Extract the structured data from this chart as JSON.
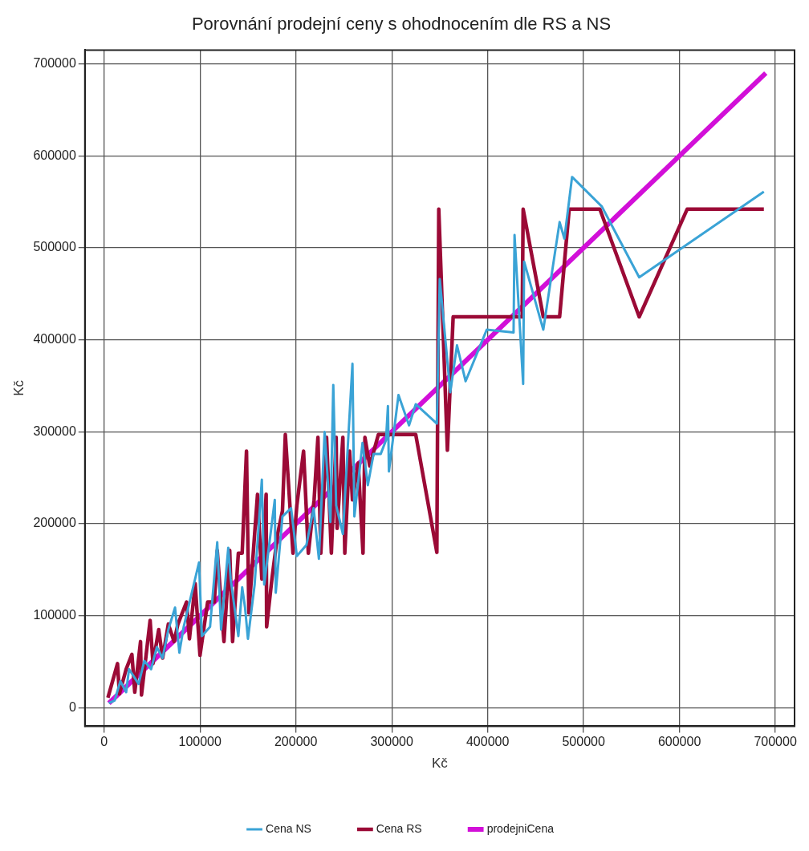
{
  "chart_data": {
    "type": "line",
    "title": "Porovnání prodejní ceny s ohodnocením dle RS a NS",
    "xlabel": "Kč",
    "ylabel": "Kč",
    "xlim": [
      -20000,
      720000
    ],
    "ylim": [
      -20000,
      715000
    ],
    "xticks": [
      0,
      100000,
      200000,
      300000,
      400000,
      500000,
      600000,
      700000
    ],
    "yticks": [
      0,
      100000,
      200000,
      300000,
      400000,
      500000,
      600000,
      700000
    ],
    "grid": true,
    "legend": "bottom",
    "marker": "none",
    "line_style": "solid",
    "series": [
      {
        "name": "Cena NS",
        "color": "#3aa3d6",
        "x": [
          5000,
          11000,
          17000,
          23000,
          26000,
          36000,
          42000,
          49000,
          55000,
          61000,
          67000,
          74000,
          78500,
          83000,
          99000,
          102000,
          110500,
          118000,
          122000,
          129500,
          132000,
          140000,
          144000,
          147000,
          150000,
          157000,
          164500,
          167000,
          178000,
          179000,
          186000,
          195000,
          201000,
          211000,
          218500,
          224000,
          230000,
          236000,
          239000,
          242000,
          249000,
          259000,
          261000,
          269500,
          275000,
          281000,
          288500,
          294000,
          296000,
          297000,
          307000,
          318000,
          325000,
          347000,
          350000,
          361000,
          368000,
          377000,
          399000,
          427000,
          428000,
          437000,
          438000,
          458000,
          475000,
          480000,
          488000,
          519000,
          558000,
          688000
        ],
        "values": [
          5000,
          8000,
          29000,
          17000,
          42000,
          26000,
          51000,
          42000,
          66000,
          54000,
          85000,
          109000,
          60000,
          88000,
          158000,
          78000,
          88000,
          180000,
          85000,
          174000,
          140000,
          78000,
          131000,
          109000,
          75000,
          134000,
          248000,
          134000,
          226000,
          125000,
          208000,
          217000,
          165000,
          177000,
          217000,
          162000,
          300000,
          202000,
          351000,
          220000,
          189000,
          374000,
          208000,
          288000,
          242000,
          276000,
          276000,
          291000,
          328000,
          257000,
          340000,
          307000,
          330000,
          309000,
          466000,
          343000,
          394000,
          355000,
          411000,
          408000,
          514000,
          352000,
          485000,
          411000,
          528000,
          510000,
          577000,
          545000,
          468000,
          561000
        ]
      },
      {
        "name": "Cena RS",
        "color": "#9b0a36",
        "x": [
          4000,
          14000,
          16000,
          23000,
          29000,
          32000,
          38000,
          39000,
          48000,
          51000,
          57000,
          61000,
          67000,
          73000,
          77000,
          86000,
          89000,
          95000,
          100000,
          108000,
          115000,
          118000,
          125000,
          131000,
          134000,
          140000,
          144000,
          148500,
          151000,
          157000,
          160000,
          164500,
          169000,
          169500,
          175000,
          181000,
          186000,
          189000,
          197000,
          201000,
          208000,
          213000,
          219000,
          223000,
          226000,
          232000,
          237000,
          242000,
          243000,
          249000,
          251000,
          256000,
          259000,
          265000,
          270000,
          272000,
          277000,
          286000,
          325000,
          347000,
          349000,
          358000,
          364000,
          436000,
          437000,
          458000,
          475000,
          485000,
          517000,
          558000,
          608000,
          688000
        ],
        "values": [
          11000,
          48000,
          15000,
          42000,
          58000,
          17000,
          72000,
          14000,
          95000,
          48000,
          85000,
          54000,
          91000,
          72000,
          91000,
          115000,
          75000,
          135000,
          57000,
          115000,
          115000,
          171000,
          72000,
          171000,
          72000,
          168000,
          168000,
          279000,
          103000,
          189000,
          232000,
          140000,
          232000,
          88000,
          140000,
          189000,
          214000,
          297000,
          168000,
          220000,
          279000,
          168000,
          226000,
          294000,
          168000,
          294000,
          168000,
          294000,
          195000,
          294000,
          168000,
          279000,
          226000,
          266000,
          168000,
          294000,
          263000,
          297000,
          297000,
          169000,
          542000,
          280000,
          425000,
          425000,
          542000,
          425000,
          425000,
          542000,
          542000,
          425000,
          542000,
          542000
        ]
      },
      {
        "name": "prodejniCena",
        "color": "#d20fd8",
        "x": [
          5000,
          690000
        ],
        "values": [
          5000,
          690000
        ]
      }
    ]
  }
}
